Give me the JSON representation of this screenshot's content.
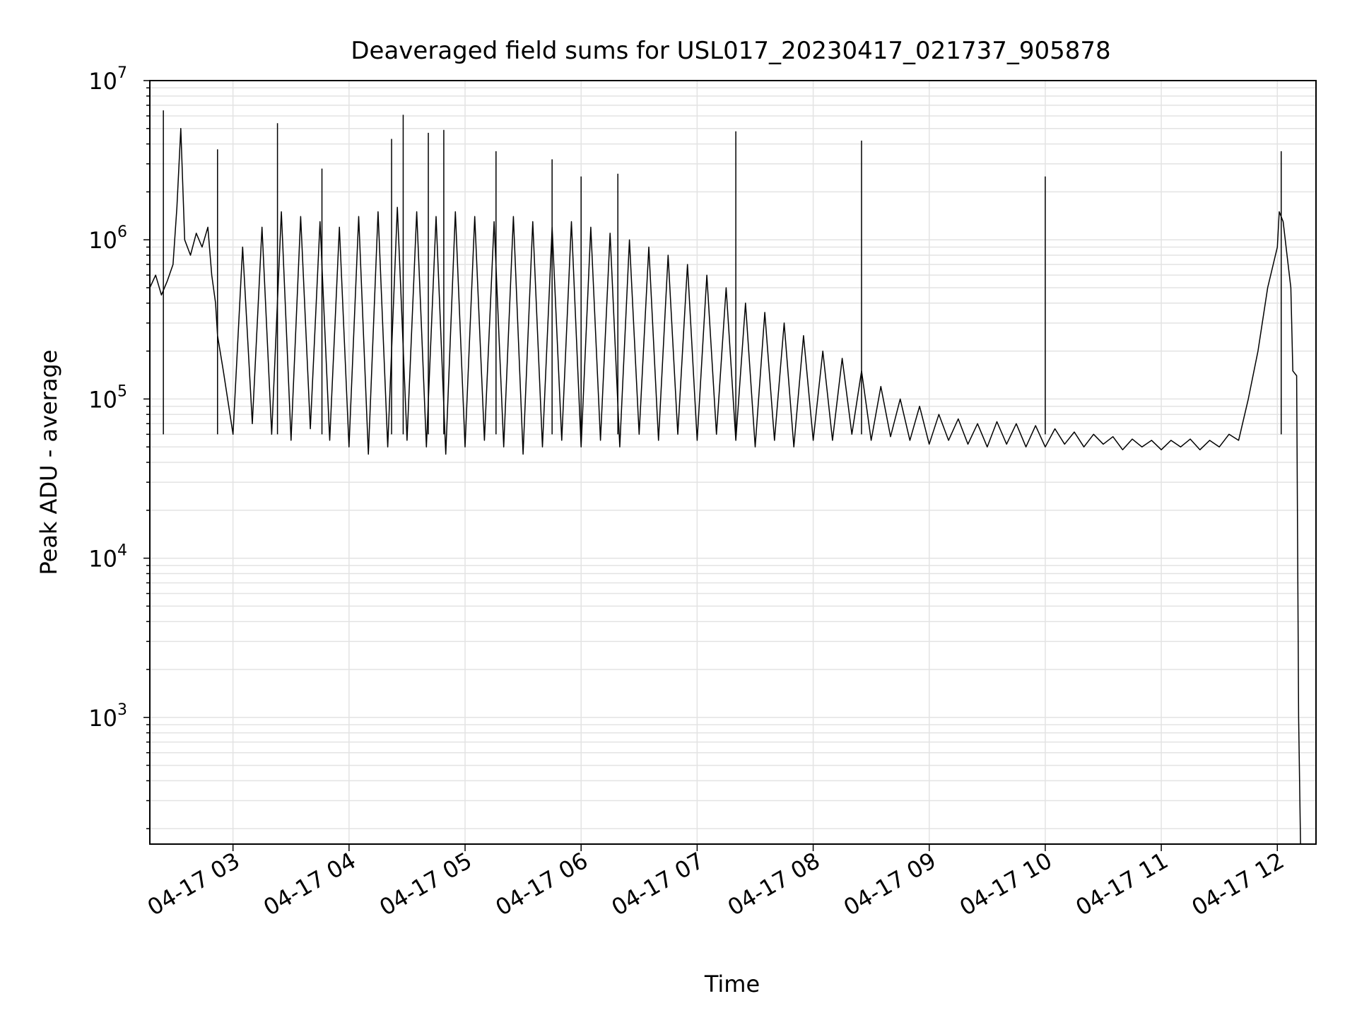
{
  "chart_data": {
    "type": "line",
    "title": "Deaveraged field sums for USL017_20230417_021737_905878",
    "xlabel": "Time",
    "ylabel": "Peak ADU - average",
    "yscale": "log",
    "ylim": [
      160,
      10000000
    ],
    "xlim": [
      "04-17 02:17",
      "04-17 12:20"
    ],
    "grid": true,
    "line_color": "#000000",
    "grid_color": "#e3e3e3",
    "x_ticks": [
      "04-17 03",
      "04-17 04",
      "04-17 05",
      "04-17 06",
      "04-17 07",
      "04-17 08",
      "04-17 09",
      "04-17 10",
      "04-17 11",
      "04-17 12"
    ],
    "y_ticks": [
      {
        "base": "10",
        "exp": "3",
        "value": 1000
      },
      {
        "base": "10",
        "exp": "4",
        "value": 10000
      },
      {
        "base": "10",
        "exp": "5",
        "value": 100000
      },
      {
        "base": "10",
        "exp": "6",
        "value": 1000000
      },
      {
        "base": "10",
        "exp": "7",
        "value": 10000000
      }
    ],
    "series": [
      {
        "x": [
          "04-17 02:17",
          "04-17 02:20",
          "04-17 02:23",
          "04-17 02:26",
          "04-17 02:29",
          "04-17 02:31",
          "04-17 02:33",
          "04-17 02:35",
          "04-17 02:38",
          "04-17 02:41",
          "04-17 02:44",
          "04-17 02:47",
          "04-17 02:49",
          "04-17 02:51",
          "04-17 02:52",
          "04-17 02:55",
          "04-17 03:00",
          "04-17 03:05",
          "04-17 03:10",
          "04-17 03:15",
          "04-17 03:20",
          "04-17 03:25",
          "04-17 03:30",
          "04-17 03:35",
          "04-17 03:40",
          "04-17 03:45",
          "04-17 03:50",
          "04-17 03:55",
          "04-17 04:00",
          "04-17 04:05",
          "04-17 04:10",
          "04-17 04:15",
          "04-17 04:20",
          "04-17 04:25",
          "04-17 04:30",
          "04-17 04:35",
          "04-17 04:40",
          "04-17 04:45",
          "04-17 04:50",
          "04-17 04:55",
          "04-17 05:00",
          "04-17 05:05",
          "04-17 05:10",
          "04-17 05:15",
          "04-17 05:20",
          "04-17 05:25",
          "04-17 05:30",
          "04-17 05:35",
          "04-17 05:40",
          "04-17 05:45",
          "04-17 05:50",
          "04-17 05:55",
          "04-17 06:00",
          "04-17 06:05",
          "04-17 06:10",
          "04-17 06:15",
          "04-17 06:20",
          "04-17 06:25",
          "04-17 06:30",
          "04-17 06:35",
          "04-17 06:40",
          "04-17 06:45",
          "04-17 06:50",
          "04-17 06:55",
          "04-17 07:00",
          "04-17 07:05",
          "04-17 07:10",
          "04-17 07:15",
          "04-17 07:20",
          "04-17 07:25",
          "04-17 07:30",
          "04-17 07:35",
          "04-17 07:40",
          "04-17 07:45",
          "04-17 07:50",
          "04-17 07:55",
          "04-17 08:00",
          "04-17 08:05",
          "04-17 08:10",
          "04-17 08:15",
          "04-17 08:20",
          "04-17 08:25",
          "04-17 08:30",
          "04-17 08:35",
          "04-17 08:40",
          "04-17 08:45",
          "04-17 08:50",
          "04-17 08:55",
          "04-17 09:00",
          "04-17 09:05",
          "04-17 09:10",
          "04-17 09:15",
          "04-17 09:20",
          "04-17 09:25",
          "04-17 09:30",
          "04-17 09:35",
          "04-17 09:40",
          "04-17 09:45",
          "04-17 09:50",
          "04-17 09:55",
          "04-17 10:00",
          "04-17 10:05",
          "04-17 10:10",
          "04-17 10:15",
          "04-17 10:20",
          "04-17 10:25",
          "04-17 10:30",
          "04-17 10:35",
          "04-17 10:40",
          "04-17 10:45",
          "04-17 10:50",
          "04-17 10:55",
          "04-17 11:00",
          "04-17 11:05",
          "04-17 11:10",
          "04-17 11:15",
          "04-17 11:20",
          "04-17 11:25",
          "04-17 11:30",
          "04-17 11:35",
          "04-17 11:40",
          "04-17 11:45",
          "04-17 11:50",
          "04-17 11:55",
          "04-17 12:00",
          "04-17 12:01",
          "04-17 12:03",
          "04-17 12:05",
          "04-17 12:07",
          "04-17 12:08",
          "04-17 12:10",
          "04-17 12:11",
          "04-17 12:12"
        ],
        "y": [
          500000,
          600000,
          450000,
          550000,
          700000,
          1600000,
          5000000,
          1000000,
          800000,
          1100000,
          900000,
          1200000,
          600000,
          400000,
          250000,
          150000,
          60000,
          900000,
          70000,
          1200000,
          60000,
          1500000,
          55000,
          1400000,
          65000,
          1300000,
          55000,
          1200000,
          50000,
          1400000,
          45000,
          1500000,
          50000,
          1600000,
          55000,
          1500000,
          50000,
          1400000,
          45000,
          1500000,
          50000,
          1400000,
          55000,
          1300000,
          50000,
          1400000,
          45000,
          1300000,
          50000,
          1200000,
          55000,
          1300000,
          50000,
          1200000,
          55000,
          1100000,
          50000,
          1000000,
          60000,
          900000,
          55000,
          800000,
          60000,
          700000,
          55000,
          600000,
          60000,
          500000,
          55000,
          400000,
          50000,
          350000,
          55000,
          300000,
          50000,
          250000,
          55000,
          200000,
          55000,
          180000,
          60000,
          150000,
          55000,
          120000,
          58000,
          100000,
          55000,
          90000,
          52000,
          80000,
          55000,
          75000,
          52000,
          70000,
          50000,
          72000,
          52000,
          70000,
          50000,
          68000,
          50000,
          65000,
          52000,
          62000,
          50000,
          60000,
          52000,
          58000,
          48000,
          56000,
          50000,
          55000,
          48000,
          55000,
          50000,
          56000,
          48000,
          55000,
          50000,
          60000,
          55000,
          100000,
          200000,
          500000,
          900000,
          1500000,
          1300000,
          800000,
          500000,
          150000,
          140000,
          1000,
          160
        ],
        "spikes": [
          {
            "x": "04-17 02:24",
            "y": 6500000
          },
          {
            "x": "04-17 02:52",
            "y": 3700000
          },
          {
            "x": "04-17 03:23",
            "y": 5400000
          },
          {
            "x": "04-17 03:46",
            "y": 2800000
          },
          {
            "x": "04-17 04:22",
            "y": 4300000
          },
          {
            "x": "04-17 04:28",
            "y": 6100000
          },
          {
            "x": "04-17 04:41",
            "y": 4700000
          },
          {
            "x": "04-17 04:49",
            "y": 4900000
          },
          {
            "x": "04-17 05:16",
            "y": 3600000
          },
          {
            "x": "04-17 05:45",
            "y": 3200000
          },
          {
            "x": "04-17 06:00",
            "y": 2500000
          },
          {
            "x": "04-17 06:19",
            "y": 2600000
          },
          {
            "x": "04-17 07:20",
            "y": 4800000
          },
          {
            "x": "04-17 08:25",
            "y": 4200000
          },
          {
            "x": "04-17 10:00",
            "y": 2500000
          },
          {
            "x": "04-17 12:02",
            "y": 3600000
          }
        ]
      }
    ]
  }
}
